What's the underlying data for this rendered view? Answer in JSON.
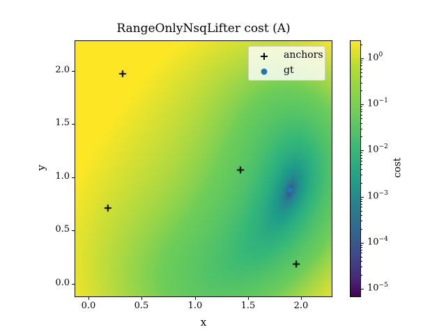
{
  "chart_data": {
    "type": "heatmap",
    "title": "RangeOnlyNsqLifter cost (A)",
    "xlabel": "x",
    "ylabel": "y",
    "xlim": [
      -0.13,
      2.3
    ],
    "ylim": [
      -0.12,
      2.29
    ],
    "xticks": [
      "0.0",
      "0.5",
      "1.0",
      "1.5",
      "2.0"
    ],
    "yticks": [
      "0.0",
      "0.5",
      "1.0",
      "1.5",
      "2.0"
    ],
    "colorbar": {
      "label": "cost",
      "scale": "log",
      "colormap": "viridis",
      "range": [
        6.6e-06,
        2.5
      ],
      "ticks": [
        "10^0",
        "10^-1",
        "10^-2",
        "10^-3",
        "10^-4",
        "10^-5"
      ]
    },
    "series": [
      {
        "name": "anchors",
        "marker": "+",
        "color": "#000000",
        "points": [
          {
            "x": 0.32,
            "y": 1.98
          },
          {
            "x": 1.44,
            "y": 1.07
          },
          {
            "x": 0.18,
            "y": 0.71
          },
          {
            "x": 1.97,
            "y": 0.18
          }
        ]
      },
      {
        "name": "gt",
        "marker": "o",
        "color": "#1f77b4",
        "points": [
          {
            "x": 1.91,
            "y": 0.88
          }
        ]
      }
    ],
    "legend": {
      "position": "upper right",
      "entries": [
        "anchors",
        "gt"
      ]
    },
    "grid": false,
    "annotations": {
      "minimum_location": {
        "x": 1.91,
        "y": 0.88
      },
      "max_region": "upper-left (cost ~2)"
    }
  },
  "labels": {
    "title": "RangeOnlyNsqLifter cost (A)",
    "xlabel": "x",
    "ylabel": "y",
    "cbar_label": "cost",
    "legend_anchors": "anchors",
    "legend_gt": "gt",
    "xticks": [
      "0.0",
      "0.5",
      "1.0",
      "1.5",
      "2.0"
    ],
    "yticks": [
      "0.0",
      "0.5",
      "1.0",
      "1.5",
      "2.0"
    ],
    "cb_ticks": [
      {
        "base": "10",
        "exp": "0"
      },
      {
        "base": "10",
        "exp": "−1"
      },
      {
        "base": "10",
        "exp": "−2"
      },
      {
        "base": "10",
        "exp": "−3"
      },
      {
        "base": "10",
        "exp": "−4"
      },
      {
        "base": "10",
        "exp": "−5"
      }
    ]
  }
}
